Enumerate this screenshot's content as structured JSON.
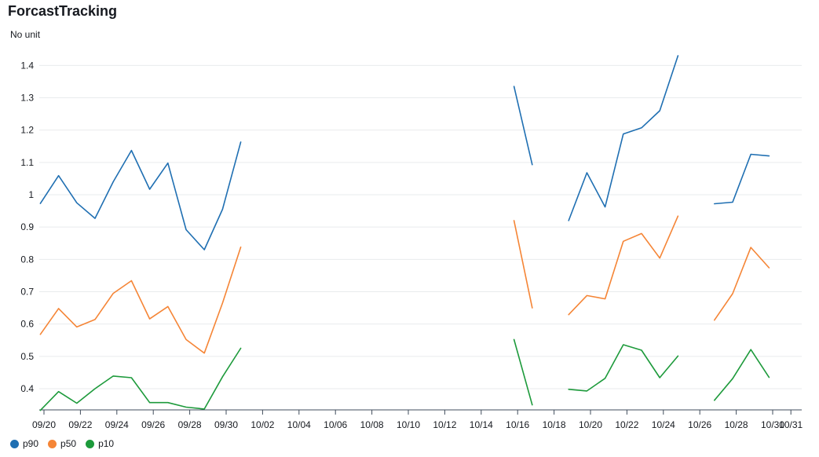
{
  "chart_data": {
    "type": "line",
    "title": "ForcastTracking",
    "unit_label": "No unit",
    "ylim": [
      0.33,
      1.45
    ],
    "yticks": [
      0.4,
      0.5,
      0.6,
      0.7,
      0.8,
      0.9,
      1,
      1.1,
      1.2,
      1.3,
      1.4
    ],
    "ytick_labels": [
      "0.4",
      "0.5",
      "0.6",
      "0.7",
      "0.8",
      "0.9",
      "1",
      "1.1",
      "1.2",
      "1.3",
      "1.4"
    ],
    "x_start": "2023-09-20",
    "xlim_days": [
      0,
      41.3
    ],
    "xticks_days": [
      0,
      2,
      4,
      6,
      8,
      10,
      12,
      14,
      16,
      18,
      20,
      22,
      24,
      26,
      28,
      30,
      32,
      34,
      36,
      38,
      40,
      41
    ],
    "xtick_labels": [
      "09/20",
      "09/22",
      "09/24",
      "09/26",
      "09/28",
      "09/30",
      "10/02",
      "10/04",
      "10/06",
      "10/08",
      "10/10",
      "10/12",
      "10/14",
      "10/16",
      "10/18",
      "10/20",
      "10/22",
      "10/24",
      "10/26",
      "10/28",
      "10/30",
      "10/31"
    ],
    "grid": true,
    "legend_position": "bottom-left",
    "series": [
      {
        "name": "p90",
        "color": "#1f6fb2",
        "segments": [
          [
            [
              -0.2,
              0.973
            ],
            [
              0.8,
              1.059
            ],
            [
              1.8,
              0.975
            ],
            [
              2.8,
              0.927
            ],
            [
              3.8,
              1.04
            ],
            [
              4.8,
              1.137
            ],
            [
              5.8,
              1.017
            ],
            [
              6.8,
              1.098
            ],
            [
              7.8,
              0.892
            ],
            [
              8.8,
              0.83
            ],
            [
              9.8,
              0.955
            ],
            [
              10.8,
              1.163
            ]
          ],
          [
            [
              25.8,
              1.335
            ],
            [
              26.8,
              1.093
            ]
          ],
          [
            [
              28.8,
              0.92
            ],
            [
              29.8,
              1.068
            ],
            [
              30.8,
              0.962
            ],
            [
              31.8,
              1.188
            ],
            [
              32.8,
              1.207
            ],
            [
              33.8,
              1.26
            ],
            [
              34.8,
              1.43
            ]
          ],
          [
            [
              36.8,
              0.972
            ],
            [
              37.8,
              0.977
            ],
            [
              38.8,
              1.125
            ],
            [
              39.8,
              1.12
            ]
          ]
        ]
      },
      {
        "name": "p50",
        "color": "#f58536",
        "segments": [
          [
            [
              -0.2,
              0.568
            ],
            [
              0.8,
              0.648
            ],
            [
              1.8,
              0.591
            ],
            [
              2.8,
              0.614
            ],
            [
              3.8,
              0.695
            ],
            [
              4.8,
              0.734
            ],
            [
              5.8,
              0.616
            ],
            [
              6.8,
              0.654
            ],
            [
              7.8,
              0.552
            ],
            [
              8.8,
              0.51
            ],
            [
              9.8,
              0.665
            ],
            [
              10.8,
              0.838
            ]
          ],
          [
            [
              25.8,
              0.92
            ],
            [
              26.8,
              0.65
            ]
          ],
          [
            [
              28.8,
              0.629
            ],
            [
              29.8,
              0.688
            ],
            [
              30.8,
              0.678
            ],
            [
              31.8,
              0.856
            ],
            [
              32.8,
              0.88
            ],
            [
              33.8,
              0.804
            ],
            [
              34.8,
              0.934
            ]
          ],
          [
            [
              36.8,
              0.612
            ],
            [
              37.8,
              0.694
            ],
            [
              38.8,
              0.837
            ],
            [
              39.8,
              0.774
            ]
          ]
        ]
      },
      {
        "name": "p10",
        "color": "#1d9a3b",
        "segments": [
          [
            [
              -0.2,
              0.333
            ],
            [
              0.8,
              0.391
            ],
            [
              1.8,
              0.355
            ],
            [
              2.8,
              0.4
            ],
            [
              3.8,
              0.439
            ],
            [
              4.8,
              0.434
            ],
            [
              5.8,
              0.357
            ],
            [
              6.8,
              0.357
            ],
            [
              7.8,
              0.343
            ],
            [
              8.8,
              0.337
            ],
            [
              9.8,
              0.437
            ],
            [
              10.8,
              0.525
            ]
          ],
          [
            [
              25.8,
              0.552
            ],
            [
              26.8,
              0.35
            ]
          ],
          [
            [
              28.8,
              0.398
            ],
            [
              29.8,
              0.393
            ],
            [
              30.8,
              0.432
            ],
            [
              31.8,
              0.536
            ],
            [
              32.8,
              0.519
            ],
            [
              33.8,
              0.434
            ],
            [
              34.8,
              0.501
            ]
          ],
          [
            [
              36.8,
              0.364
            ],
            [
              37.8,
              0.431
            ],
            [
              38.8,
              0.521
            ],
            [
              39.8,
              0.435
            ]
          ]
        ]
      }
    ]
  }
}
